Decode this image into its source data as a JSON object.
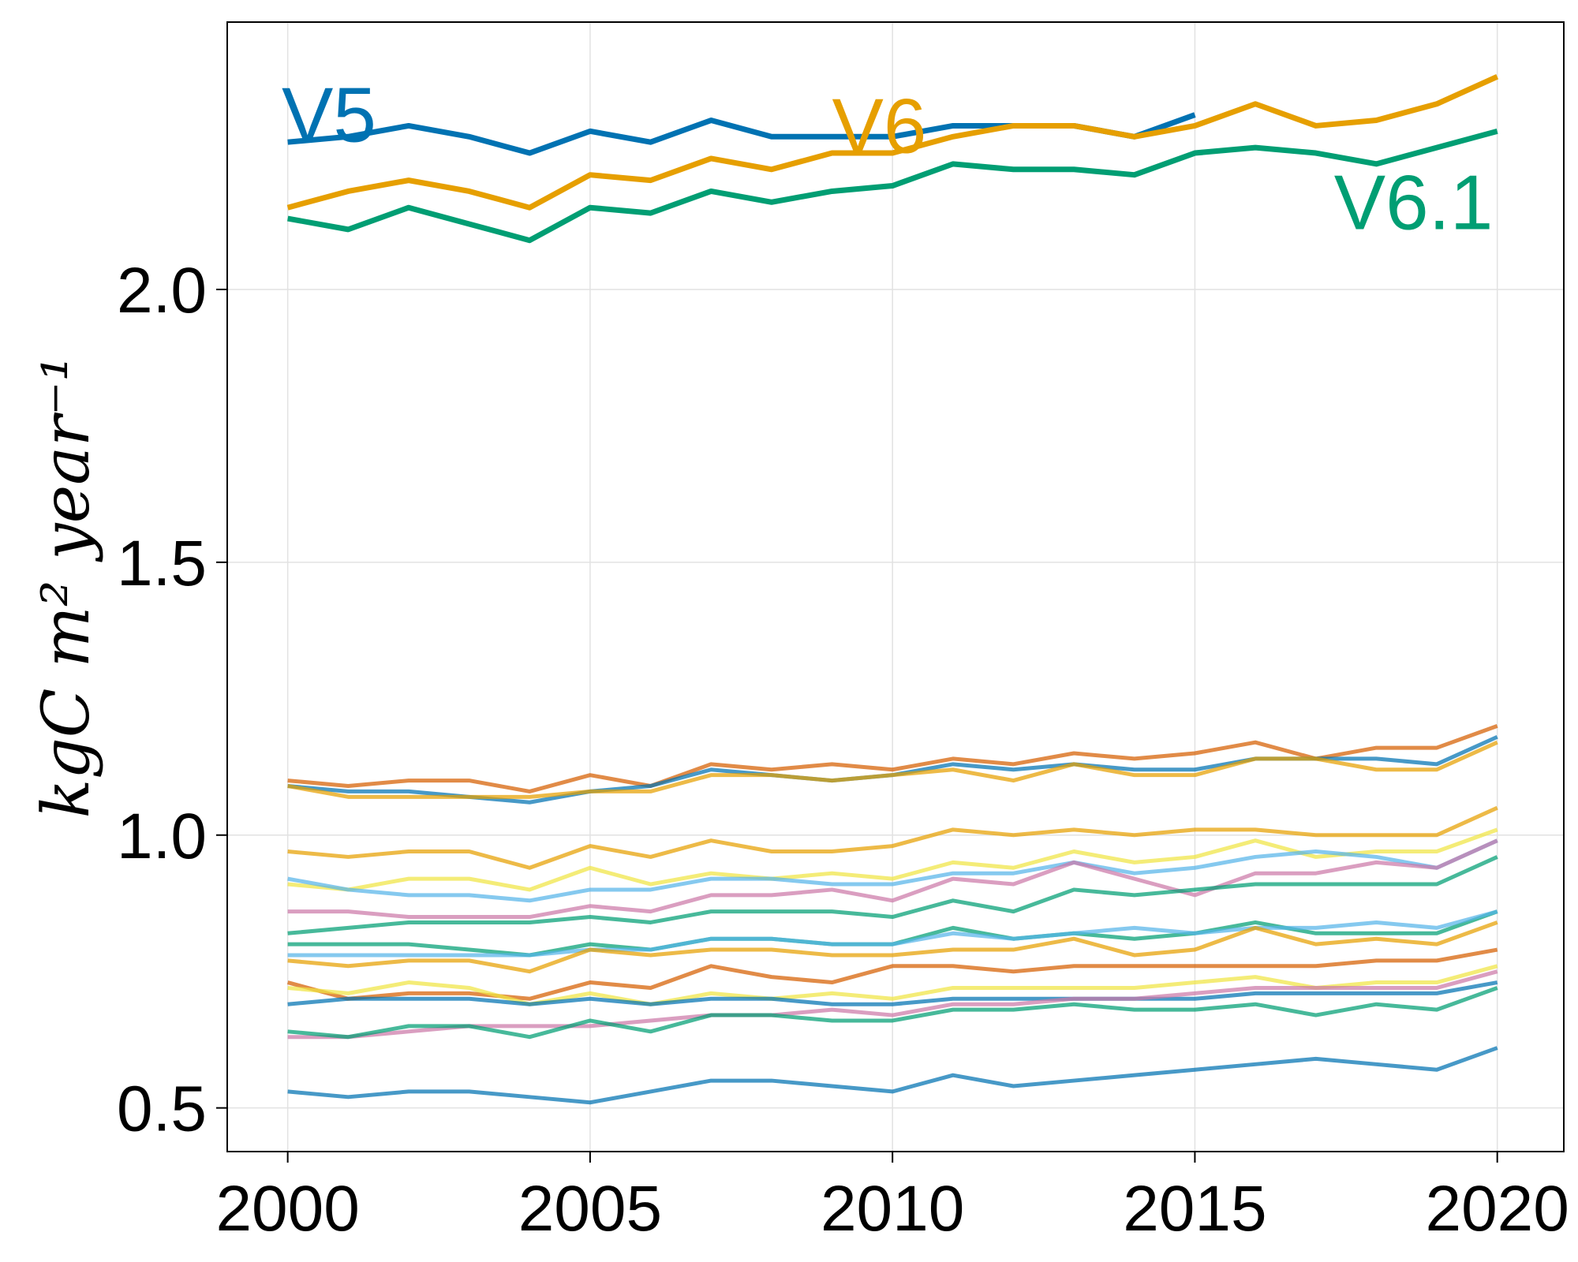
{
  "chart_data": {
    "type": "line",
    "title": "",
    "xlabel": "",
    "ylabel": "kgC m² year⁻¹",
    "xlim": [
      1999,
      2021.1
    ],
    "ylim": [
      0.42,
      2.49
    ],
    "x_ticks": [
      2000,
      2005,
      2010,
      2015,
      2020
    ],
    "y_ticks": [
      0.5,
      1.0,
      1.5,
      2.0
    ],
    "x_tick_labels": [
      "2000",
      "2005",
      "2010",
      "2015",
      "2020"
    ],
    "y_tick_labels": [
      "0.5",
      "1.0",
      "1.5",
      "2.0"
    ],
    "grid": true,
    "legend": "none",
    "x": [
      2000,
      2001,
      2002,
      2003,
      2004,
      2005,
      2006,
      2007,
      2008,
      2009,
      2010,
      2011,
      2012,
      2013,
      2014,
      2015,
      2016,
      2017,
      2018,
      2019,
      2020
    ],
    "labeled_series": [
      {
        "name": "V5",
        "color": "#0072b2",
        "label_x": 1999.9,
        "label_y": 2.32,
        "values": [
          2.27,
          2.28,
          2.3,
          2.28,
          2.25,
          2.29,
          2.27,
          2.31,
          2.28,
          2.28,
          2.28,
          2.3,
          2.3,
          2.3,
          2.28,
          2.32
        ]
      },
      {
        "name": "V6",
        "color": "#e69f00",
        "label_x": 2009.0,
        "label_y": 2.3,
        "values": [
          2.15,
          2.18,
          2.2,
          2.18,
          2.15,
          2.21,
          2.2,
          2.24,
          2.22,
          2.25,
          2.25,
          2.28,
          2.3,
          2.3,
          2.28,
          2.3,
          2.34,
          2.3,
          2.31,
          2.34,
          2.39
        ]
      },
      {
        "name": "V6.1",
        "color": "#009e73",
        "label_x": 2017.3,
        "label_y": 2.16,
        "values": [
          2.13,
          2.11,
          2.15,
          2.12,
          2.09,
          2.15,
          2.14,
          2.18,
          2.16,
          2.18,
          2.19,
          2.23,
          2.22,
          2.22,
          2.21,
          2.25,
          2.26,
          2.25,
          2.23,
          2.26,
          2.29
        ]
      }
    ],
    "background_series": [
      {
        "color": "#d55e00",
        "values": [
          1.1,
          1.09,
          1.1,
          1.1,
          1.08,
          1.11,
          1.09,
          1.13,
          1.12,
          1.13,
          1.12,
          1.14,
          1.13,
          1.15,
          1.14,
          1.15,
          1.17,
          1.14,
          1.16,
          1.16,
          1.2
        ]
      },
      {
        "color": "#0072b2",
        "values": [
          1.09,
          1.08,
          1.08,
          1.07,
          1.06,
          1.08,
          1.09,
          1.12,
          1.11,
          1.1,
          1.11,
          1.13,
          1.12,
          1.13,
          1.12,
          1.12,
          1.14,
          1.14,
          1.14,
          1.13,
          1.18
        ]
      },
      {
        "color": "#e69f00",
        "values": [
          1.09,
          1.07,
          1.07,
          1.07,
          1.07,
          1.08,
          1.08,
          1.11,
          1.11,
          1.1,
          1.11,
          1.12,
          1.1,
          1.13,
          1.11,
          1.11,
          1.14,
          1.14,
          1.12,
          1.12,
          1.17
        ]
      },
      {
        "color": "#e69f00",
        "values": [
          0.97,
          0.96,
          0.97,
          0.97,
          0.94,
          0.98,
          0.96,
          0.99,
          0.97,
          0.97,
          0.98,
          1.01,
          1.0,
          1.01,
          1.0,
          1.01,
          1.01,
          1.0,
          1.0,
          1.0,
          1.05
        ]
      },
      {
        "color": "#f0e442",
        "values": [
          0.91,
          0.9,
          0.92,
          0.92,
          0.9,
          0.94,
          0.91,
          0.93,
          0.92,
          0.93,
          0.92,
          0.95,
          0.94,
          0.97,
          0.95,
          0.96,
          0.99,
          0.96,
          0.97,
          0.97,
          1.01
        ]
      },
      {
        "color": "#56b4e9",
        "values": [
          0.92,
          0.9,
          0.89,
          0.89,
          0.88,
          0.9,
          0.9,
          0.92,
          0.92,
          0.91,
          0.91,
          0.93,
          0.93,
          0.95,
          0.93,
          0.94,
          0.96,
          0.97,
          0.96,
          0.94,
          0.99
        ]
      },
      {
        "color": "#cc79a7",
        "values": [
          0.86,
          0.86,
          0.85,
          0.85,
          0.85,
          0.87,
          0.86,
          0.89,
          0.89,
          0.9,
          0.88,
          0.92,
          0.91,
          0.95,
          0.92,
          0.89,
          0.93,
          0.93,
          0.95,
          0.94,
          0.99
        ]
      },
      {
        "color": "#009e73",
        "values": [
          0.82,
          0.83,
          0.84,
          0.84,
          0.84,
          0.85,
          0.84,
          0.86,
          0.86,
          0.86,
          0.85,
          0.88,
          0.86,
          0.9,
          0.89,
          0.9,
          0.91,
          0.91,
          0.91,
          0.91,
          0.96
        ]
      },
      {
        "color": "#009e73",
        "values": [
          0.8,
          0.8,
          0.8,
          0.79,
          0.78,
          0.8,
          0.79,
          0.81,
          0.81,
          0.8,
          0.8,
          0.83,
          0.81,
          0.82,
          0.81,
          0.82,
          0.84,
          0.82,
          0.82,
          0.82,
          0.86
        ]
      },
      {
        "color": "#56b4e9",
        "values": [
          0.78,
          0.78,
          0.78,
          0.78,
          0.78,
          0.79,
          0.79,
          0.81,
          0.81,
          0.8,
          0.8,
          0.82,
          0.81,
          0.82,
          0.83,
          0.82,
          0.83,
          0.83,
          0.84,
          0.83,
          0.86
        ]
      },
      {
        "color": "#e69f00",
        "values": [
          0.77,
          0.76,
          0.77,
          0.77,
          0.75,
          0.79,
          0.78,
          0.79,
          0.79,
          0.78,
          0.78,
          0.79,
          0.79,
          0.81,
          0.78,
          0.79,
          0.83,
          0.8,
          0.81,
          0.8,
          0.84
        ]
      },
      {
        "color": "#d55e00",
        "values": [
          0.73,
          0.7,
          0.71,
          0.71,
          0.7,
          0.73,
          0.72,
          0.76,
          0.74,
          0.73,
          0.76,
          0.76,
          0.75,
          0.76,
          0.76,
          0.76,
          0.76,
          0.76,
          0.77,
          0.77,
          0.79
        ]
      },
      {
        "color": "#f0e442",
        "values": [
          0.72,
          0.71,
          0.73,
          0.72,
          0.69,
          0.71,
          0.69,
          0.71,
          0.7,
          0.71,
          0.7,
          0.72,
          0.72,
          0.72,
          0.72,
          0.73,
          0.74,
          0.72,
          0.73,
          0.73,
          0.76
        ]
      },
      {
        "color": "#0072b2",
        "values": [
          0.69,
          0.7,
          0.7,
          0.7,
          0.69,
          0.7,
          0.69,
          0.7,
          0.7,
          0.69,
          0.69,
          0.7,
          0.7,
          0.7,
          0.7,
          0.7,
          0.71,
          0.71,
          0.71,
          0.71,
          0.73
        ]
      },
      {
        "color": "#cc79a7",
        "values": [
          0.63,
          0.63,
          0.64,
          0.65,
          0.65,
          0.65,
          0.66,
          0.67,
          0.67,
          0.68,
          0.67,
          0.69,
          0.69,
          0.7,
          0.7,
          0.71,
          0.72,
          0.72,
          0.72,
          0.72,
          0.75
        ]
      },
      {
        "color": "#009e73",
        "values": [
          0.64,
          0.63,
          0.65,
          0.65,
          0.63,
          0.66,
          0.64,
          0.67,
          0.67,
          0.66,
          0.66,
          0.68,
          0.68,
          0.69,
          0.68,
          0.68,
          0.69,
          0.67,
          0.69,
          0.68,
          0.72
        ]
      },
      {
        "color": "#0072b2",
        "values": [
          0.53,
          0.52,
          0.53,
          0.53,
          0.52,
          0.51,
          0.53,
          0.55,
          0.55,
          0.54,
          0.53,
          0.56,
          0.54,
          0.55,
          0.56,
          0.57,
          0.58,
          0.59,
          0.58,
          0.57,
          0.61
        ]
      }
    ]
  }
}
